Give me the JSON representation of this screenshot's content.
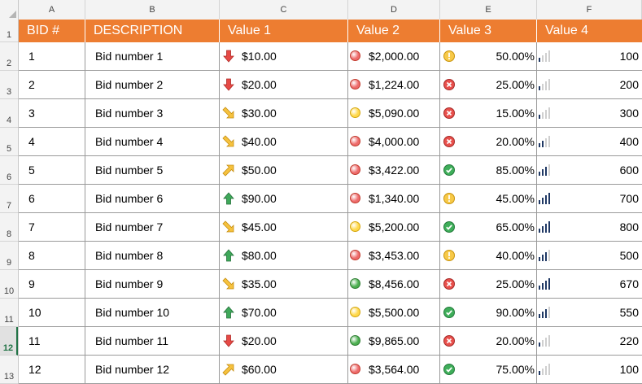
{
  "columns": [
    "A",
    "B",
    "C",
    "D",
    "E",
    "F"
  ],
  "header": {
    "bid": "BID #",
    "desc": "DESCRIPTION",
    "v1": "Value 1",
    "v2": "Value 2",
    "v3": "Value 3",
    "v4": "Value 4"
  },
  "rows": [
    {
      "bid": "1",
      "desc": "Bid number 1",
      "v1": "$10.00",
      "a1": "arrow-down-red",
      "v2": "$2,000.00",
      "d2": "red",
      "v3": "50.00%",
      "s3": "warn",
      "v4": "100",
      "b4": 1
    },
    {
      "bid": "2",
      "desc": "Bid number 2",
      "v1": "$20.00",
      "a1": "arrow-down-red",
      "v2": "$1,224.00",
      "d2": "red",
      "v3": "25.00%",
      "s3": "cross",
      "v4": "200",
      "b4": 1
    },
    {
      "bid": "3",
      "desc": "Bid number 3",
      "v1": "$30.00",
      "a1": "arrow-downright-yellow",
      "v2": "$5,090.00",
      "d2": "yellow",
      "v3": "15.00%",
      "s3": "cross",
      "v4": "300",
      "b4": 1
    },
    {
      "bid": "4",
      "desc": "Bid number 4",
      "v1": "$40.00",
      "a1": "arrow-downright-yellow",
      "v2": "$4,000.00",
      "d2": "red",
      "v3": "20.00%",
      "s3": "cross",
      "v4": "400",
      "b4": 2
    },
    {
      "bid": "5",
      "desc": "Bid number 5",
      "v1": "$50.00",
      "a1": "arrow-upright-yellow",
      "v2": "$3,422.00",
      "d2": "red",
      "v3": "85.00%",
      "s3": "check",
      "v4": "600",
      "b4": 3
    },
    {
      "bid": "6",
      "desc": "Bid number 6",
      "v1": "$90.00",
      "a1": "arrow-up-green",
      "v2": "$1,340.00",
      "d2": "red",
      "v3": "45.00%",
      "s3": "warn",
      "v4": "700",
      "b4": 4
    },
    {
      "bid": "7",
      "desc": "Bid number 7",
      "v1": "$45.00",
      "a1": "arrow-downright-yellow",
      "v2": "$5,200.00",
      "d2": "yellow",
      "v3": "65.00%",
      "s3": "check",
      "v4": "800",
      "b4": 4
    },
    {
      "bid": "8",
      "desc": "Bid number 8",
      "v1": "$80.00",
      "a1": "arrow-up-green",
      "v2": "$3,453.00",
      "d2": "red",
      "v3": "40.00%",
      "s3": "warn",
      "v4": "500",
      "b4": 3
    },
    {
      "bid": "9",
      "desc": "Bid number 9",
      "v1": "$35.00",
      "a1": "arrow-downright-yellow",
      "v2": "$8,456.00",
      "d2": "green",
      "v3": "25.00%",
      "s3": "cross",
      "v4": "670",
      "b4": 4
    },
    {
      "bid": "10",
      "desc": "Bid number 10",
      "v1": "$70.00",
      "a1": "arrow-up-green",
      "v2": "$5,500.00",
      "d2": "yellow",
      "v3": "90.00%",
      "s3": "check",
      "v4": "550",
      "b4": 3
    },
    {
      "bid": "11",
      "desc": "Bid number 11",
      "v1": "$20.00",
      "a1": "arrow-down-red",
      "v2": "$9,865.00",
      "d2": "green",
      "v3": "20.00%",
      "s3": "cross",
      "v4": "220",
      "b4": 1
    },
    {
      "bid": "12",
      "desc": "Bid number 12",
      "v1": "$60.00",
      "a1": "arrow-upright-yellow",
      "v2": "$3,564.00",
      "d2": "red",
      "v3": "75.00%",
      "s3": "check",
      "v4": "100",
      "b4": 1
    }
  ],
  "selected_row": "12",
  "colors": {
    "header_fill": "#ed7d31",
    "excel_green": "#217346",
    "bar_on": "#1f3864",
    "bar_off": "#cfcfcf"
  }
}
